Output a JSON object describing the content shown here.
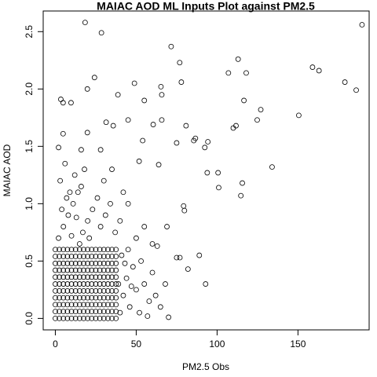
{
  "chart_data": {
    "type": "scatter",
    "title": "MAIAC AOD ML Inputs Plot against PM2.5",
    "xlabel": "PM2.5 Obs",
    "ylabel": "MAIAC AOD",
    "color": "#000000",
    "xlim": [
      -7.5,
      194
    ],
    "ylim": [
      -0.1,
      2.68
    ],
    "xticks": [
      0,
      50,
      100,
      150
    ],
    "yticks": [
      {
        "value": 0,
        "label": "0.0"
      },
      {
        "value": 0.5,
        "label": "0.5"
      },
      {
        "value": 1,
        "label": "1.0"
      },
      {
        "value": 1.5,
        "label": "1.5"
      },
      {
        "value": 2,
        "label": "2.0"
      },
      {
        "value": 2.5,
        "label": "2.5"
      }
    ],
    "x": [
      0,
      0,
      0,
      0,
      0,
      0,
      0,
      0,
      0,
      0,
      0,
      2.5,
      2.5,
      2.5,
      2.5,
      2.5,
      2.5,
      2.5,
      2.5,
      2.5,
      2.5,
      2.5,
      5,
      5,
      5,
      5,
      5,
      5,
      5,
      5,
      5,
      5,
      5,
      7.5,
      7.5,
      7.5,
      7.5,
      7.5,
      7.5,
      7.5,
      7.5,
      7.5,
      7.5,
      7.5,
      10,
      10,
      10,
      10,
      10,
      10,
      10,
      10,
      10,
      10,
      10,
      12.5,
      12.5,
      12.5,
      12.5,
      12.5,
      12.5,
      12.5,
      12.5,
      12.5,
      12.5,
      12.5,
      15,
      15,
      15,
      15,
      15,
      15,
      15,
      15,
      15,
      15,
      15,
      17.5,
      17.5,
      17.5,
      17.5,
      17.5,
      17.5,
      17.5,
      17.5,
      17.5,
      17.5,
      17.5,
      20,
      20,
      20,
      20,
      20,
      20,
      20,
      20,
      20,
      20,
      20,
      22.5,
      22.5,
      22.5,
      22.5,
      22.5,
      22.5,
      22.5,
      22.5,
      22.5,
      22.5,
      22.5,
      25,
      25,
      25,
      25,
      25,
      25,
      25,
      25,
      25,
      25,
      25,
      27.5,
      27.5,
      27.5,
      27.5,
      27.5,
      27.5,
      27.5,
      27.5,
      27.5,
      27.5,
      27.5,
      30,
      30,
      30,
      30,
      30,
      30,
      30,
      30,
      30,
      30,
      30,
      32.5,
      32.5,
      32.5,
      32.5,
      32.5,
      32.5,
      32.5,
      32.5,
      32.5,
      32.5,
      32.5,
      35,
      35,
      35,
      35,
      35,
      35,
      35,
      35,
      35,
      35,
      35,
      37.5,
      37.5,
      37.5,
      37.5,
      37.5,
      37.5,
      37.5,
      37.5,
      37.5,
      37.5,
      37.5,
      40,
      42,
      44,
      46,
      48,
      50,
      52,
      55,
      58,
      60,
      62,
      65,
      68,
      41,
      45,
      39,
      43,
      47,
      53,
      57,
      2,
      5,
      8,
      11,
      14,
      17,
      20,
      23,
      26,
      3,
      6,
      9,
      12,
      15,
      18,
      21,
      28,
      31,
      34,
      37,
      40,
      45,
      50,
      4,
      7,
      10,
      13,
      16,
      30,
      35,
      42,
      55,
      60,
      18.4,
      28.5,
      189.6,
      71.6,
      76.9,
      113,
      159,
      163,
      24.2,
      48.9,
      65.3,
      77.9,
      107,
      118,
      179,
      186,
      3.4,
      4.8,
      9.7,
      19.8,
      38.7,
      55,
      65.8,
      116.6,
      127,
      124.8,
      150.5,
      31.4,
      45,
      65.8,
      35.8,
      60.5,
      80.8,
      110,
      111.7,
      4.8,
      19.8,
      54,
      85.6,
      86.6,
      92.4,
      94.3,
      28,
      75,
      2,
      16,
      134,
      93.9,
      100.6,
      63.9,
      51.8,
      101,
      115.6,
      114.7,
      79.3,
      79.8,
      89,
      92.9,
      70,
      82,
      77,
      75,
      63,
      69
    ],
    "y": [
      0,
      0.06,
      0.12,
      0.18,
      0.24,
      0.3,
      0.36,
      0.42,
      0.48,
      0.54,
      0.6,
      0,
      0.06,
      0.12,
      0.18,
      0.24,
      0.3,
      0.36,
      0.42,
      0.48,
      0.54,
      0.6,
      0,
      0.06,
      0.12,
      0.18,
      0.24,
      0.3,
      0.36,
      0.42,
      0.48,
      0.54,
      0.6,
      0,
      0.06,
      0.12,
      0.18,
      0.24,
      0.3,
      0.36,
      0.42,
      0.48,
      0.54,
      0.6,
      0,
      0.06,
      0.12,
      0.18,
      0.24,
      0.3,
      0.36,
      0.42,
      0.48,
      0.54,
      0.6,
      0,
      0.06,
      0.12,
      0.18,
      0.24,
      0.3,
      0.36,
      0.42,
      0.48,
      0.54,
      0.6,
      0,
      0.06,
      0.12,
      0.18,
      0.24,
      0.3,
      0.36,
      0.42,
      0.48,
      0.54,
      0.6,
      0,
      0.06,
      0.12,
      0.18,
      0.24,
      0.3,
      0.36,
      0.42,
      0.48,
      0.54,
      0.6,
      0,
      0.06,
      0.12,
      0.18,
      0.24,
      0.3,
      0.36,
      0.42,
      0.48,
      0.54,
      0.6,
      0,
      0.06,
      0.12,
      0.18,
      0.24,
      0.3,
      0.36,
      0.42,
      0.48,
      0.54,
      0.6,
      0,
      0.06,
      0.12,
      0.18,
      0.24,
      0.3,
      0.36,
      0.42,
      0.48,
      0.54,
      0.6,
      0,
      0.06,
      0.12,
      0.18,
      0.24,
      0.3,
      0.36,
      0.42,
      0.48,
      0.54,
      0.6,
      0,
      0.06,
      0.12,
      0.18,
      0.24,
      0.3,
      0.36,
      0.42,
      0.48,
      0.54,
      0.6,
      0,
      0.06,
      0.12,
      0.18,
      0.24,
      0.3,
      0.36,
      0.42,
      0.48,
      0.54,
      0.6,
      0,
      0.06,
      0.12,
      0.18,
      0.24,
      0.3,
      0.36,
      0.42,
      0.48,
      0.54,
      0.6,
      0,
      0.06,
      0.12,
      0.18,
      0.24,
      0.3,
      0.36,
      0.42,
      0.48,
      0.54,
      0.6,
      0.05,
      0.2,
      0.35,
      0.1,
      0.45,
      0.25,
      0.05,
      0.3,
      0.15,
      0.4,
      0.2,
      0.1,
      0.3,
      0.55,
      0.6,
      0.3,
      0.48,
      0.28,
      0.5,
      0.02,
      0.7,
      0.8,
      0.9,
      1.0,
      1.1,
      0.75,
      0.85,
      0.95,
      1.05,
      1.2,
      1.35,
      1.1,
      1.25,
      0.65,
      1.3,
      0.7,
      0.8,
      0.9,
      1.0,
      0.75,
      0.85,
      1.0,
      0.7,
      0.95,
      1.05,
      0.72,
      0.88,
      1.15,
      1.2,
      1.3,
      1.1,
      0.8,
      0.65,
      2.58,
      2.49,
      2.56,
      2.37,
      2.23,
      2.26,
      2.19,
      2.16,
      2.1,
      2.05,
      2.02,
      2.06,
      2.14,
      2.14,
      2.06,
      1.99,
      1.91,
      1.88,
      1.88,
      2.0,
      1.95,
      1.9,
      1.95,
      1.9,
      1.82,
      1.73,
      1.77,
      1.71,
      1.73,
      1.73,
      1.68,
      1.69,
      1.68,
      1.66,
      1.68,
      1.61,
      1.62,
      1.55,
      1.55,
      1.57,
      1.49,
      1.54,
      1.47,
      1.53,
      1.49,
      1.47,
      1.32,
      1.27,
      1.27,
      1.34,
      1.37,
      1.14,
      1.18,
      1.07,
      0.98,
      0.94,
      0.55,
      0.3,
      0.01,
      0.43,
      0.53,
      0.53,
      0.63,
      0.8
    ]
  }
}
